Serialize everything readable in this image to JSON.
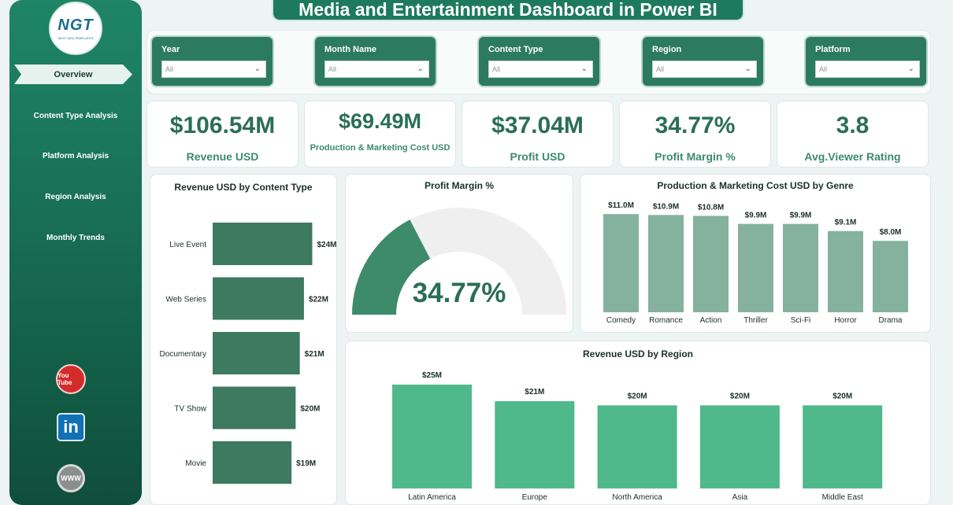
{
  "title": "Media and Entertainment Dashboard in Power BI",
  "logo": {
    "text": "NGT",
    "subtext": "NEXT GEN TEMPLATES"
  },
  "sidebar": {
    "items": [
      {
        "label": "Overview",
        "active": true
      },
      {
        "label": "Content Type Analysis"
      },
      {
        "label": "Platform Analysis"
      },
      {
        "label": "Region Analysis"
      },
      {
        "label": "Monthly Trends"
      }
    ],
    "social": [
      {
        "name": "youtube-icon",
        "label": "You Tube"
      },
      {
        "name": "linkedin-icon",
        "label": "in"
      },
      {
        "name": "website-icon",
        "label": "WWW"
      }
    ]
  },
  "filters": [
    {
      "label": "Year",
      "value": "All"
    },
    {
      "label": "Month Name",
      "value": "All"
    },
    {
      "label": "Content Type",
      "value": "All"
    },
    {
      "label": "Region",
      "value": "All"
    },
    {
      "label": "Platform",
      "value": "All"
    }
  ],
  "kpis": [
    {
      "value": "$106.54M",
      "label": "Revenue USD"
    },
    {
      "value": "$69.49M",
      "label": "Production & Marketing Cost USD"
    },
    {
      "value": "$37.04M",
      "label": "Profit USD"
    },
    {
      "value": "34.77%",
      "label": "Profit Margin %"
    },
    {
      "value": "3.8",
      "label": "Avg.Viewer Rating"
    }
  ],
  "colors": {
    "sidebar": "#1a7a5d",
    "kpi_text": "#2a6e57",
    "bar_content": "#3d7a60",
    "bar_genre": "#85b29e",
    "bar_region": "#4fb98b",
    "gauge_fill": "#3d8b6a",
    "gauge_track": "#efefef"
  },
  "chart_data": [
    {
      "type": "bar",
      "orientation": "horizontal",
      "title": "Revenue USD by Content Type",
      "categories": [
        "Live Event",
        "Web Series",
        "Documentary",
        "TV Show",
        "Movie"
      ],
      "values": [
        24,
        22,
        21,
        20,
        19
      ],
      "data_labels": [
        "$24M",
        "$22M",
        "$21M",
        "$20M",
        "$19M"
      ],
      "xlim": [
        0,
        26
      ]
    },
    {
      "type": "gauge",
      "title": "Profit Margin %",
      "value": 34.77,
      "value_label": "34.77%",
      "range": [
        0,
        100
      ]
    },
    {
      "type": "bar",
      "title": "Production & Marketing Cost USD by Genre",
      "categories": [
        "Comedy",
        "Romance",
        "Action",
        "Thriller",
        "Sci-Fi",
        "Horror",
        "Drama"
      ],
      "values": [
        11.0,
        10.9,
        10.8,
        9.9,
        9.9,
        9.1,
        8.0
      ],
      "data_labels": [
        "$11.0M",
        "$10.9M",
        "$10.8M",
        "$9.9M",
        "$9.9M",
        "$9.1M",
        "$8.0M"
      ],
      "ylim": [
        0,
        12.6
      ]
    },
    {
      "type": "bar",
      "title": "Revenue USD by Region",
      "categories": [
        "Latin America",
        "Europe",
        "North America",
        "Asia",
        "Middle East"
      ],
      "values": [
        25,
        21,
        20,
        20,
        20
      ],
      "data_labels": [
        "$25M",
        "$21M",
        "$20M",
        "$20M",
        "$20M"
      ],
      "ylim": [
        0,
        26.5
      ]
    }
  ]
}
